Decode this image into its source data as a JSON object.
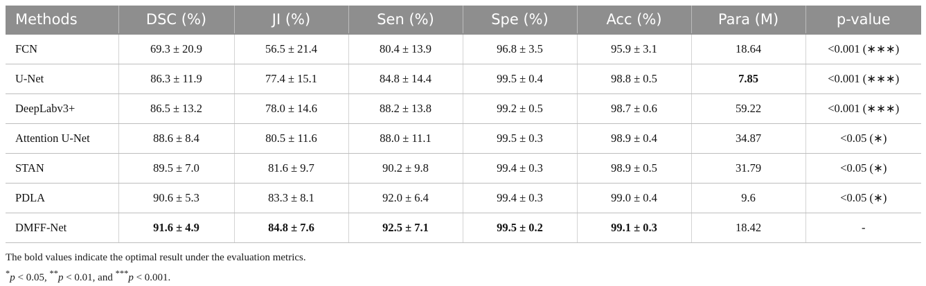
{
  "table": {
    "headers": [
      "Methods",
      "DSC (%)",
      "JI (%)",
      "Sen (%)",
      "Spe (%)",
      "Acc (%)",
      "Para (M)",
      "p-value"
    ],
    "rows": [
      {
        "cells": [
          "FCN",
          "69.3 ± 20.9",
          "56.5 ± 21.4",
          "80.4 ± 13.9",
          "96.8 ± 3.5",
          "95.9 ± 3.1",
          "18.64",
          "<0.001 (∗∗∗)"
        ],
        "bold": []
      },
      {
        "cells": [
          "U-Net",
          "86.3 ± 11.9",
          "77.4 ± 15.1",
          "84.8 ± 14.4",
          "99.5 ± 0.4",
          "98.8 ± 0.5",
          "7.85",
          "<0.001 (∗∗∗)"
        ],
        "bold": [
          6
        ]
      },
      {
        "cells": [
          "DeepLabv3+",
          "86.5 ± 13.2",
          "78.0 ± 14.6",
          "88.2 ± 13.8",
          "99.2 ± 0.5",
          "98.7 ± 0.6",
          "59.22",
          "<0.001 (∗∗∗)"
        ],
        "bold": []
      },
      {
        "cells": [
          "Attention U-Net",
          "88.6 ± 8.4",
          "80.5 ± 11.6",
          "88.0 ± 11.1",
          "99.5 ± 0.3",
          "98.9 ± 0.4",
          "34.87",
          "<0.05 (∗)"
        ],
        "bold": []
      },
      {
        "cells": [
          "STAN",
          "89.5 ± 7.0",
          "81.6 ± 9.7",
          "90.2 ± 9.8",
          "99.4 ± 0.3",
          "98.9 ± 0.5",
          "31.79",
          "<0.05 (∗)"
        ],
        "bold": []
      },
      {
        "cells": [
          "PDLA",
          "90.6 ± 5.3",
          "83.3 ± 8.1",
          "92.0 ± 6.4",
          "99.4 ± 0.3",
          "99.0 ± 0.4",
          "9.6",
          "<0.05 (∗)"
        ],
        "bold": []
      },
      {
        "cells": [
          "DMFF-Net",
          "91.6 ± 4.9",
          "84.8 ± 7.6",
          "92.5 ± 7.1",
          "99.5 ± 0.2",
          "99.1 ± 0.3",
          "18.42",
          "-"
        ],
        "bold": [
          1,
          2,
          3,
          4,
          5
        ]
      }
    ]
  },
  "notes": {
    "line1": "The bold values indicate the optimal result under the evaluation metrics.",
    "line2": {
      "s1": "*",
      "p1": "p",
      "t1": " < 0.05, ",
      "s2": "**",
      "p2": "p",
      "t2": " < 0.01, and ",
      "s3": "***",
      "p3": "p",
      "t3": " < 0.001."
    }
  }
}
